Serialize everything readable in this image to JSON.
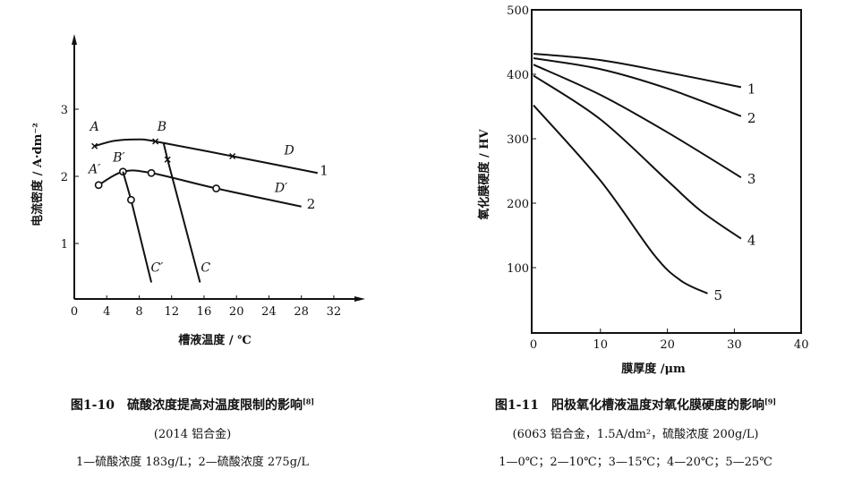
{
  "chart_data": [
    {
      "type": "line",
      "xlabel": "槽液温度 / ℃",
      "ylabel": "电流密度 / A·dm⁻²",
      "xlim": [
        0,
        35
      ],
      "ylim": [
        0,
        3.9
      ],
      "xticks": [
        "0",
        "4",
        "8",
        "12",
        "16",
        "20",
        "24",
        "28",
        "32"
      ],
      "yticks": [
        "1",
        "2",
        "3"
      ],
      "grid": false,
      "series": [
        {
          "name": "1",
          "marker": "x",
          "points": [
            [
              2.5,
              2.45
            ],
            [
              5,
              2.53
            ],
            [
              8,
              2.55
            ],
            [
              10,
              2.52
            ],
            [
              19.5,
              2.3
            ],
            [
              30,
              2.05
            ]
          ],
          "markers": [
            [
              2.5,
              2.45
            ],
            [
              10,
              2.52
            ],
            [
              19.5,
              2.3
            ]
          ]
        },
        {
          "name": "1",
          "marker": "x",
          "points": [
            [
              11,
              2.5
            ],
            [
              11.5,
              2.25
            ],
            [
              15.5,
              0.42
            ]
          ],
          "markers": [
            [
              11.5,
              2.25
            ]
          ]
        },
        {
          "name": "2",
          "marker": "circle",
          "points": [
            [
              3,
              1.87
            ],
            [
              6,
              2.07
            ],
            [
              9.5,
              2.05
            ],
            [
              17.5,
              1.82
            ],
            [
              28,
              1.55
            ]
          ],
          "markers": [
            [
              3,
              1.87
            ],
            [
              6,
              2.07
            ],
            [
              9.5,
              2.05
            ],
            [
              17.5,
              1.82
            ]
          ]
        },
        {
          "name": "2",
          "marker": "circle",
          "points": [
            [
              6,
              2.07
            ],
            [
              7,
              1.65
            ],
            [
              9.5,
              0.42
            ]
          ],
          "markers": [
            [
              7,
              1.65
            ]
          ]
        }
      ],
      "annotations": [
        {
          "text": "A",
          "x": 2.5,
          "y": 2.68
        },
        {
          "text": "B",
          "x": 10.8,
          "y": 2.68
        },
        {
          "text": "D",
          "x": 26.5,
          "y": 2.33
        },
        {
          "text": "A′",
          "x": 2.5,
          "y": 2.05
        },
        {
          "text": "B′",
          "x": 5.5,
          "y": 2.22
        },
        {
          "text": "D′",
          "x": 25.5,
          "y": 1.77
        },
        {
          "text": "C′",
          "x": 10.2,
          "y": 0.58
        },
        {
          "text": "C",
          "x": 16.2,
          "y": 0.58
        },
        {
          "text": "1",
          "x": 30.8,
          "y": 2.02
        },
        {
          "text": "2",
          "x": 29.2,
          "y": 1.52
        }
      ]
    },
    {
      "type": "line",
      "xlabel": "膜厚度 /μm",
      "ylabel": "氧化膜硬度 / HV",
      "xlim": [
        0,
        40
      ],
      "ylim": [
        0,
        500
      ],
      "xticks": [
        "0",
        "10",
        "20",
        "30",
        "40"
      ],
      "yticks": [
        "100",
        "200",
        "300",
        "400",
        "500"
      ],
      "grid": false,
      "series": [
        {
          "name": "1",
          "points": [
            [
              0,
              432
            ],
            [
              10,
              422
            ],
            [
              20,
              403
            ],
            [
              31,
              380
            ]
          ]
        },
        {
          "name": "2",
          "points": [
            [
              0,
              425
            ],
            [
              10,
              408
            ],
            [
              20,
              378
            ],
            [
              31,
              335
            ]
          ]
        },
        {
          "name": "3",
          "points": [
            [
              0,
              415
            ],
            [
              10,
              368
            ],
            [
              20,
              310
            ],
            [
              31,
              240
            ]
          ]
        },
        {
          "name": "4",
          "points": [
            [
              0,
              398
            ],
            [
              10,
              330
            ],
            [
              20,
              235
            ],
            [
              25,
              188
            ],
            [
              31,
              145
            ]
          ]
        },
        {
          "name": "5",
          "points": [
            [
              0,
              352
            ],
            [
              10,
              235
            ],
            [
              18,
              120
            ],
            [
              22,
              80
            ],
            [
              26,
              60
            ]
          ]
        }
      ]
    }
  ],
  "captions": {
    "left": {
      "title": "图1-10　硫酸浓度提高对温度限制的影响",
      "ref": "[8]",
      "line2": "(2014 铝合金)",
      "line3": "1—硫酸浓度 183g/L；2—硫酸浓度 275g/L"
    },
    "right": {
      "title": "图1-11　阳极氧化槽液温度对氧化膜硬度的影响",
      "ref": "[9]",
      "line2": "(6063 铝合金，1.5A/dm²，硫酸浓度 200g/L)",
      "line3": "1—0℃；2—10℃；3—15℃；4—20℃；5—25℃"
    }
  }
}
